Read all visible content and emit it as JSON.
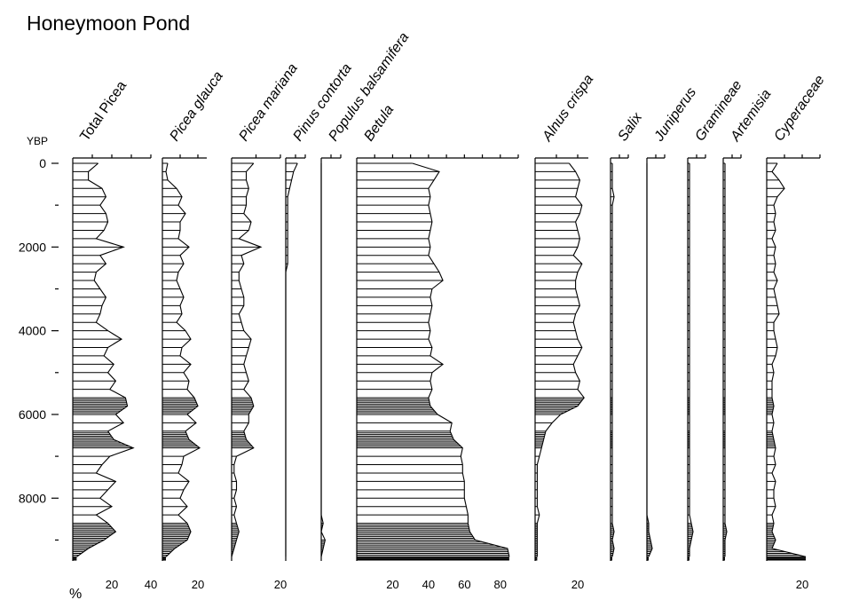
{
  "chart_data": {
    "type": "area",
    "title": "Honeymoon Pond",
    "ylabel": "YBP",
    "xlabel": "%",
    "y_reversed": true,
    "ylim": [
      0,
      9500
    ],
    "y_ticks": [
      0,
      2000,
      4000,
      6000,
      8000
    ],
    "depth": [
      0,
      200,
      400,
      600,
      800,
      1000,
      1200,
      1400,
      1600,
      1800,
      2000,
      2200,
      2400,
      2600,
      2800,
      3000,
      3200,
      3400,
      3600,
      3800,
      4000,
      4200,
      4400,
      4600,
      4800,
      5000,
      5200,
      5400,
      5600,
      5800,
      6000,
      6200,
      6400,
      6600,
      6800,
      7000,
      7200,
      7400,
      7600,
      7800,
      8000,
      8200,
      8400,
      8600,
      8800,
      9000,
      9200,
      9400
    ],
    "series": [
      {
        "name": "Total Picea",
        "max": 40,
        "ticks": [
          20,
          40
        ],
        "values": [
          13,
          8,
          8,
          15,
          17,
          14,
          17,
          18,
          16,
          12,
          26,
          14,
          17,
          12,
          11,
          14,
          17,
          15,
          14,
          12,
          18,
          25,
          18,
          16,
          21,
          18,
          22,
          19,
          27,
          28,
          22,
          26,
          18,
          21,
          31,
          19,
          15,
          12,
          22,
          18,
          14,
          20,
          12,
          18,
          22,
          16,
          8,
          2
        ]
      },
      {
        "name": "Picea glauca",
        "max": 25,
        "ticks": [
          20
        ],
        "values": [
          3,
          2,
          3,
          8,
          11,
          9,
          13,
          10,
          10,
          9,
          15,
          10,
          12,
          9,
          8,
          10,
          12,
          10,
          11,
          8,
          13,
          16,
          11,
          10,
          16,
          12,
          15,
          14,
          18,
          20,
          14,
          19,
          13,
          15,
          21,
          12,
          11,
          9,
          15,
          12,
          10,
          14,
          9,
          14,
          16,
          14,
          7,
          2
        ]
      },
      {
        "name": "Picea mariana",
        "max": 20,
        "ticks": [
          20
        ],
        "values": [
          9,
          6,
          6,
          7,
          6,
          6,
          5,
          8,
          7,
          3,
          12,
          4,
          5,
          3,
          3,
          4,
          5,
          5,
          3,
          4,
          5,
          8,
          7,
          6,
          5,
          6,
          7,
          5,
          8,
          9,
          7,
          7,
          5,
          6,
          9,
          2,
          1,
          1,
          2,
          2,
          1,
          2,
          1,
          2,
          3,
          2,
          1,
          0
        ]
      },
      {
        "name": "Pinus contorta",
        "max": 10,
        "ticks": [],
        "values": [
          6,
          4,
          3,
          2,
          1,
          1,
          1,
          1,
          1,
          1,
          1,
          1,
          1,
          0,
          0,
          0,
          0,
          0,
          0,
          0,
          0,
          0,
          0,
          0,
          0,
          0,
          0,
          0,
          0,
          0,
          0,
          0,
          0,
          0,
          0,
          0,
          0,
          0,
          0,
          0,
          0,
          0,
          0,
          0,
          0,
          0,
          0,
          0
        ]
      },
      {
        "name": "Populus balsamifera",
        "max": 10,
        "ticks": [],
        "values": [
          0,
          0,
          0,
          0,
          0,
          0,
          0,
          0,
          0,
          0,
          0,
          0,
          0,
          0,
          0,
          0,
          0,
          0,
          0,
          0,
          0,
          0,
          0,
          0,
          0,
          0,
          0,
          0,
          0,
          0,
          0,
          0,
          0,
          0,
          0,
          0,
          0,
          0,
          0,
          0,
          0,
          0,
          0,
          1,
          0,
          2,
          1,
          0
        ]
      },
      {
        "name": "Betula",
        "max": 90,
        "ticks": [
          20,
          40,
          60,
          80
        ],
        "values": [
          31,
          46,
          43,
          40,
          41,
          40,
          41,
          42,
          41,
          40,
          41,
          40,
          43,
          46,
          48,
          42,
          41,
          42,
          41,
          40,
          41,
          40,
          42,
          41,
          48,
          42,
          41,
          42,
          40,
          41,
          45,
          53,
          52,
          54,
          59,
          58,
          59,
          59,
          60,
          60,
          60,
          61,
          62,
          62,
          63,
          66,
          84,
          85
        ]
      },
      {
        "name": "Alnus crispa",
        "max": 25,
        "ticks": [
          20
        ],
        "values": [
          16,
          19,
          21,
          20,
          19,
          22,
          21,
          19,
          20,
          21,
          20,
          18,
          22,
          20,
          19,
          19,
          20,
          21,
          19,
          18,
          19,
          20,
          22,
          20,
          18,
          19,
          21,
          20,
          23,
          20,
          12,
          8,
          5,
          4,
          3,
          2,
          1,
          1,
          1,
          1,
          1,
          1,
          2,
          1,
          1,
          1,
          1,
          1
        ]
      },
      {
        "name": "Salix",
        "max": 10,
        "ticks": [],
        "values": [
          1,
          1,
          1,
          1,
          2,
          1,
          1,
          1,
          1,
          1,
          1,
          1,
          1,
          1,
          1,
          1,
          1,
          1,
          1,
          1,
          1,
          1,
          1,
          1,
          1,
          1,
          1,
          1,
          1,
          1,
          1,
          1,
          1,
          1,
          1,
          1,
          1,
          1,
          1,
          1,
          1,
          1,
          1,
          1,
          2,
          1,
          2,
          1
        ]
      },
      {
        "name": "Juniperus",
        "max": 10,
        "ticks": [],
        "values": [
          0,
          0,
          0,
          0,
          0,
          0,
          0,
          0,
          0,
          0,
          0,
          0,
          0,
          0,
          0,
          0,
          0,
          0,
          0,
          0,
          0,
          0,
          0,
          0,
          0,
          0,
          0,
          0,
          0,
          0,
          0,
          0,
          0,
          0,
          0,
          0,
          0,
          0,
          0,
          0,
          0,
          0,
          0,
          1,
          1,
          2,
          3,
          1
        ]
      },
      {
        "name": "Gramineae",
        "max": 10,
        "ticks": [],
        "values": [
          1,
          1,
          1,
          1,
          1,
          1,
          1,
          1,
          1,
          1,
          1,
          1,
          1,
          1,
          1,
          1,
          1,
          1,
          1,
          1,
          1,
          1,
          1,
          1,
          1,
          1,
          1,
          1,
          1,
          1,
          1,
          1,
          1,
          1,
          1,
          1,
          1,
          1,
          1,
          1,
          1,
          1,
          1,
          2,
          3,
          2,
          1,
          1
        ]
      },
      {
        "name": "Artemisia",
        "max": 10,
        "ticks": [],
        "values": [
          1,
          1,
          1,
          1,
          1,
          1,
          1,
          1,
          1,
          1,
          1,
          1,
          1,
          1,
          1,
          1,
          1,
          1,
          1,
          1,
          1,
          1,
          1,
          1,
          1,
          1,
          1,
          1,
          1,
          1,
          1,
          1,
          1,
          1,
          1,
          1,
          1,
          1,
          1,
          1,
          1,
          1,
          1,
          1,
          2,
          1,
          1,
          1
        ]
      },
      {
        "name": "Cyperaceae",
        "max": 30,
        "ticks": [
          20
        ],
        "values": [
          6,
          3,
          7,
          10,
          6,
          4,
          5,
          4,
          5,
          3,
          5,
          4,
          5,
          4,
          6,
          4,
          5,
          6,
          7,
          4,
          4,
          5,
          6,
          5,
          3,
          4,
          3,
          3,
          3,
          4,
          3,
          4,
          3,
          4,
          5,
          4,
          5,
          3,
          5,
          4,
          4,
          5,
          3,
          4,
          3,
          5,
          3,
          22
        ]
      }
    ]
  }
}
